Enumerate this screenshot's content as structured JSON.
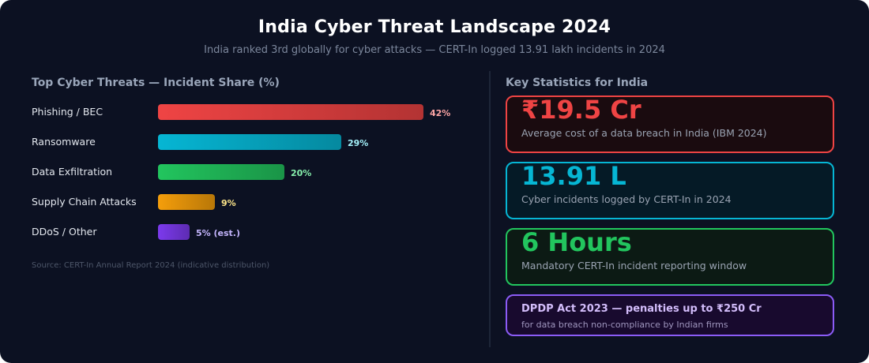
{
  "header": {
    "title": "India Cyber Threat Landscape 2024",
    "subtitle": "India ranked 3rd globally for cyber attacks — CERT-In logged 13.91 lakh incidents in 2024"
  },
  "chart_data": {
    "type": "bar",
    "orientation": "horizontal",
    "title": "Top Cyber Threats — Incident Share (%)",
    "categories": [
      "Phishing / BEC",
      "Ransomware",
      "Data Exfiltration",
      "Supply Chain Attacks",
      "DDoS / Other"
    ],
    "values": [
      42,
      29,
      20,
      9,
      5
    ],
    "value_labels": [
      "42%",
      "29%",
      "20%",
      "9%",
      "5% (est.)"
    ],
    "colors": [
      "#ef4444",
      "#06b6d4",
      "#22c55e",
      "#f59e0b",
      "#7c3aed"
    ],
    "label_colors": [
      "#fca5a5",
      "#a5f3fc",
      "#86efac",
      "#fde68a",
      "#c4b5fd"
    ],
    "xlim": [
      0,
      42
    ],
    "source": "Source: CERT-In Annual Report 2024 (indicative distribution)"
  },
  "stats": {
    "title": "Key Statistics for India",
    "items": [
      {
        "value": "₹19.5 Cr",
        "desc": "Average cost of a data breach in India (IBM 2024)",
        "color": "#ef4444"
      },
      {
        "value": "13.91 L",
        "desc": "Cyber incidents logged by CERT-In in 2024",
        "color": "#06b6d4"
      },
      {
        "value": "6 Hours",
        "desc": "Mandatory CERT-In incident reporting window",
        "color": "#22c55e"
      }
    ],
    "dpdp": {
      "title": "DPDP Act 2023 — penalties up to ₹250 Cr",
      "desc": "for data breach non-compliance by Indian firms",
      "color": "#8b5cf6"
    }
  }
}
